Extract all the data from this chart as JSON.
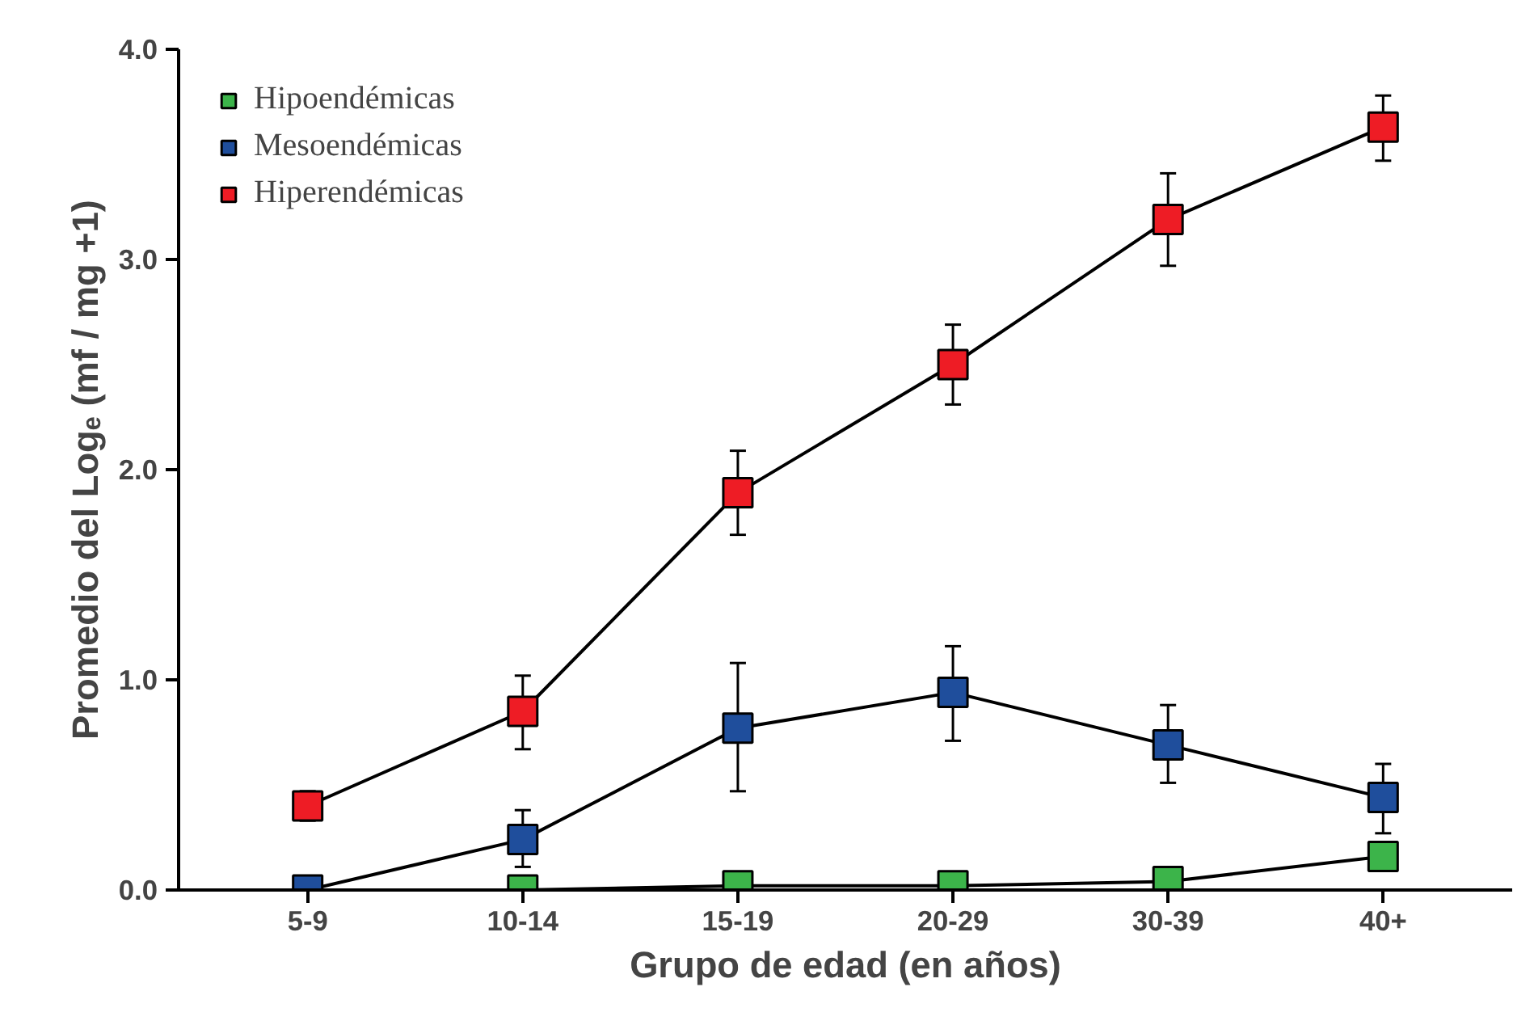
{
  "chart_data": {
    "type": "line",
    "xlabel": "Grupo de edad (en años)",
    "ylabel": "Promedio del Logₑ (mf / mg +1)",
    "categories": [
      "5-9",
      "10-14",
      "15-19",
      "20-29",
      "30-39",
      "40+"
    ],
    "series": [
      {
        "name": "Hipoendémicas",
        "color": "#3cb44a",
        "values": [
          null,
          0.0,
          0.02,
          0.02,
          0.04,
          0.16
        ]
      },
      {
        "name": "Mesoendémicas",
        "color": "#1f4e9c",
        "values": [
          0.0,
          0.24,
          0.77,
          0.94,
          0.69,
          0.44
        ],
        "errors": [
          null,
          [
            0.11,
            0.38
          ],
          [
            0.47,
            1.08
          ],
          [
            0.71,
            1.16
          ],
          [
            0.51,
            0.88
          ],
          [
            0.27,
            0.6
          ]
        ]
      },
      {
        "name": "Hiperendémicas",
        "color": "#ee1c25",
        "values": [
          0.4,
          0.85,
          1.89,
          2.5,
          3.19,
          3.63
        ],
        "errors": [
          [
            0.33,
            0.47
          ],
          [
            0.67,
            1.02
          ],
          [
            1.69,
            2.09
          ],
          [
            2.31,
            2.69
          ],
          [
            2.97,
            3.41
          ],
          [
            3.47,
            3.78
          ]
        ]
      }
    ],
    "ylim": [
      0,
      4
    ],
    "yticks": [
      {
        "value": 0,
        "label": "0.0"
      },
      {
        "value": 1,
        "label": "1.0"
      },
      {
        "value": 2,
        "label": "2.0"
      },
      {
        "value": 3,
        "label": "3.0"
      },
      {
        "value": 4,
        "label": "4.0"
      }
    ],
    "marker": "square",
    "line_style": "solid",
    "grid": false,
    "legend": "top left"
  }
}
